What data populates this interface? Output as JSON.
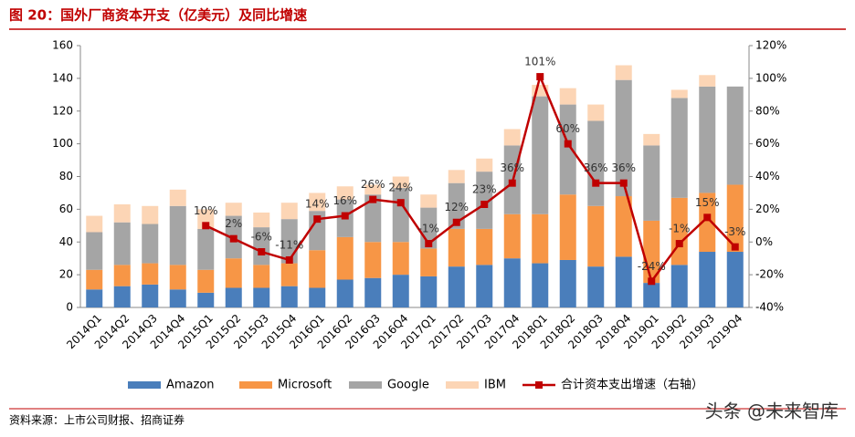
{
  "header": {
    "title": "图 20：国外厂商资本开支（亿美元）及同比增速"
  },
  "chart_data": {
    "type": "bar",
    "stacked": true,
    "categories": [
      "2014Q1",
      "2014Q2",
      "2014Q3",
      "2014Q4",
      "2015Q1",
      "2015Q2",
      "2015Q3",
      "2015Q4",
      "2016Q1",
      "2016Q2",
      "2016Q3",
      "2016Q4",
      "2017Q1",
      "2017Q2",
      "2017Q3",
      "2017Q4",
      "2018Q1",
      "2018Q2",
      "2018Q3",
      "2018Q4",
      "2019Q1",
      "2019Q2",
      "2019Q3",
      "2019Q4"
    ],
    "series": [
      {
        "name": "Amazon",
        "color": "#4a7ebb",
        "values": [
          11,
          13,
          14,
          11,
          9,
          12,
          12,
          13,
          12,
          17,
          18,
          20,
          19,
          25,
          26,
          30,
          27,
          29,
          25,
          31,
          15,
          26,
          34,
          34
        ]
      },
      {
        "name": "Microsoft",
        "color": "#f79646",
        "values": [
          12,
          13,
          13,
          15,
          14,
          18,
          14,
          14,
          23,
          26,
          22,
          20,
          17,
          23,
          22,
          27,
          30,
          40,
          37,
          37,
          38,
          41,
          36,
          41
        ]
      },
      {
        "name": "Google",
        "color": "#a5a5a5",
        "values": [
          23,
          26,
          24,
          36,
          25,
          26,
          23,
          27,
          24,
          23,
          29,
          33,
          25,
          28,
          35,
          42,
          72,
          55,
          52,
          71,
          46,
          61,
          65,
          60
        ]
      },
      {
        "name": "IBM",
        "color": "#fcd5b5",
        "values": [
          10,
          11,
          11,
          10,
          12,
          8,
          9,
          10,
          11,
          8,
          6,
          7,
          8,
          8,
          8,
          10,
          7,
          10,
          10,
          9,
          7,
          5,
          7,
          null
        ]
      },
      {
        "name": "合计资本支出增速（右轴）",
        "color": "#c00000",
        "type": "line",
        "axis": "y2",
        "values": [
          null,
          null,
          null,
          null,
          10,
          2,
          -6,
          -11,
          14,
          16,
          26,
          24,
          -1,
          12,
          23,
          36,
          101,
          60,
          36,
          36,
          -24,
          -1,
          15,
          -3
        ],
        "value_labels": [
          null,
          null,
          null,
          null,
          "10%",
          "2%",
          "-6%",
          "-11%",
          "14%",
          "16%",
          "26%",
          "24%",
          "-1%",
          "12%",
          "23%",
          "36%",
          "101%",
          "60%",
          "36%",
          "36%",
          "-24%",
          "-1%",
          "15%",
          "-3%"
        ]
      }
    ],
    "ylim": [
      0,
      160
    ],
    "yticks": [
      0,
      20,
      40,
      60,
      80,
      100,
      120,
      140,
      160
    ],
    "y2lim": [
      -40,
      120
    ],
    "y2ticks": [
      {
        "value": -40,
        "label": "-40%"
      },
      {
        "value": -20,
        "label": "-20%"
      },
      {
        "value": 0,
        "label": "0%"
      },
      {
        "value": 20,
        "label": "20%"
      },
      {
        "value": 40,
        "label": "40%"
      },
      {
        "value": 60,
        "label": "60%"
      },
      {
        "value": 80,
        "label": "80%"
      },
      {
        "value": 100,
        "label": "100%"
      },
      {
        "value": 120,
        "label": "120%"
      }
    ],
    "legend": "bottom"
  },
  "footer": {
    "source": "资料来源：上市公司财报、招商证券",
    "watermark": "头条 @未来智库"
  }
}
